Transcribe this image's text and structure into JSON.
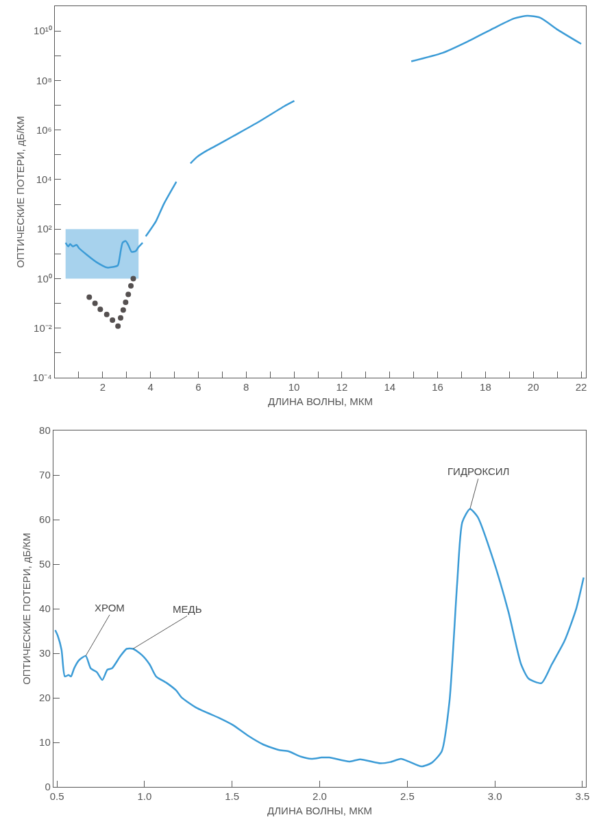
{
  "chart_data": [
    {
      "type": "line",
      "xlabel": "ДЛИНА ВОЛНЫ, МКМ",
      "ylabel": "ОПТИЧЕСКИЕ ПОТЕРИ, дБ/КМ",
      "log": "y",
      "grid": false,
      "xlim": [
        0,
        22.2
      ],
      "ylim": [
        0.0001,
        100000000000.0
      ],
      "xticks": [
        {
          "value": 1,
          "label": null
        },
        2,
        {
          "value": 3,
          "label": null
        },
        4,
        {
          "value": 5,
          "label": null
        },
        6,
        {
          "value": 7,
          "label": null
        },
        8,
        {
          "value": 9,
          "label": null
        },
        10,
        {
          "value": 11,
          "label": null
        },
        12,
        {
          "value": 13,
          "label": null
        },
        14,
        {
          "value": 15,
          "label": null
        },
        16,
        {
          "value": 17,
          "label": null
        },
        18,
        {
          "value": 19,
          "label": null
        },
        20,
        {
          "value": 21,
          "label": null
        },
        22
      ],
      "yticks": [
        {
          "value": 0.0001,
          "label": "10⁻⁴"
        },
        {
          "value": 0.001,
          "label": null
        },
        {
          "value": 0.01,
          "label": "10⁻²"
        },
        {
          "value": 0.1,
          "label": null
        },
        {
          "value": 1,
          "label": "10⁰"
        },
        {
          "value": 10,
          "label": null
        },
        {
          "value": 100,
          "label": "10²"
        },
        {
          "value": 1000.0,
          "label": null
        },
        {
          "value": 10000.0,
          "label": "10⁴"
        },
        {
          "value": 100000.0,
          "label": null
        },
        {
          "value": 1000000.0,
          "label": "10⁶"
        },
        {
          "value": 10000000.0,
          "label": null
        },
        {
          "value": 100000000.0,
          "label": "10⁸"
        },
        {
          "value": 1000000000.0,
          "label": null
        },
        {
          "value": 10000000000.0,
          "label": "10¹⁰"
        }
      ],
      "series": [
        {
          "type": "line",
          "color": "#3b9bd6",
          "x": [
            0.45,
            0.56,
            0.64,
            0.75,
            0.91,
            1.01,
            1.33,
            1.76,
            2.19,
            2.63,
            2.71,
            2.83,
            2.96,
            3.07,
            3.21,
            3.38,
            3.5
          ],
          "values": [
            28,
            20,
            25,
            20,
            23,
            17,
            9.3,
            4.5,
            2.8,
            3.4,
            7.2,
            28,
            33,
            23,
            12,
            13,
            19
          ],
          "lower": [
            1,
            1,
            1,
            1,
            1,
            1,
            1,
            1,
            1,
            1,
            1,
            1,
            1,
            1,
            1,
            1,
            1
          ],
          "upper": [
            100,
            100,
            100,
            100,
            100,
            100,
            100,
            100,
            100,
            100,
            100,
            100,
            100,
            100,
            100,
            100,
            100
          ]
        },
        {
          "type": "line",
          "color": "#3b9bd6",
          "x": [
            3.5,
            3.67,
            3.73,
            3.8,
            4.23,
            4.55,
            5.08,
            5.3,
            5.67,
            5.94,
            6.37,
            6.8,
            7.45,
            8.51,
            9.59,
            10.01,
            12,
            14.9,
            16.21,
            17.27,
            18.35,
            19.2,
            19.75,
            20.29,
            21.03,
            22.0
          ],
          "values": [
            19,
            28,
            null,
            51,
            210,
            1000,
            8100,
            null,
            45000,
            81000,
            150000,
            250000,
            560000,
            2100000,
            9100000,
            15000000,
            null,
            590000000,
            1300000000,
            3800000000,
            13000000000,
            32000000000,
            41000000000,
            34000000000,
            11000000000,
            3000000000
          ]
        },
        {
          "type": "scatter",
          "marker": "circle",
          "color": "#555050",
          "x": [
            1.44,
            1.68,
            1.9,
            2.17,
            2.41,
            2.64,
            2.75,
            2.86,
            2.96,
            3.07,
            3.18,
            3.28
          ],
          "values": [
            0.18,
            0.1,
            0.058,
            0.036,
            0.021,
            0.012,
            0.026,
            0.054,
            0.11,
            0.23,
            0.51,
            1.0
          ]
        }
      ]
    },
    {
      "type": "line",
      "xlabel": "ДЛИНА ВОЛНЫ, МКМ",
      "ylabel": "ОПТИЧЕСКИЕ ПОТЕРИ, дБ/КМ",
      "grid": false,
      "xlim": [
        0.48,
        3.52
      ],
      "ylim": [
        0,
        80
      ],
      "xticks": [
        {
          "value": 0.5,
          "label": "0.5"
        },
        {
          "value": 1,
          "label": "1.0"
        },
        {
          "value": 1.5,
          "label": "1.5"
        },
        {
          "value": 2,
          "label": "2.0"
        },
        {
          "value": 2.5,
          "label": "2.5"
        },
        {
          "value": 3,
          "label": "3.0"
        },
        {
          "value": 3.5,
          "label": "3.5"
        }
      ],
      "yticks": [
        0,
        10,
        20,
        30,
        40,
        50,
        60,
        70,
        80
      ],
      "annotations": [
        {
          "text": "ХРОМ",
          "x": 0.664,
          "y": 29.4
        },
        {
          "text": "МЕДЬ",
          "x": 0.934,
          "y": 31
        },
        {
          "text": "ГИДРОКСИЛ",
          "x": 2.858,
          "y": 62.4
        }
      ],
      "series": [
        {
          "type": "line",
          "color": "#3b9bd6",
          "x": [
            0.49,
            0.504,
            0.526,
            0.545,
            0.566,
            0.58,
            0.598,
            0.625,
            0.664,
            0.693,
            0.727,
            0.759,
            0.788,
            0.814,
            0.861,
            0.898,
            0.934,
            0.985,
            1.029,
            1.066,
            1.124,
            1.182,
            1.211,
            1.299,
            1.43,
            1.504,
            1.591,
            1.679,
            1.766,
            1.822,
            1.892,
            1.953,
            2.011,
            2.055,
            2.172,
            2.23,
            2.347,
            2.405,
            2.464,
            2.508,
            2.581,
            2.639,
            2.697,
            2.741,
            2.785,
            2.814,
            2.858,
            2.902,
            2.989,
            3.077,
            3.15,
            3.193,
            3.266,
            3.325,
            3.398,
            3.464,
            3.507
          ],
          "values": [
            35.2,
            34,
            30.8,
            24.8,
            25.1,
            24.8,
            26.6,
            28.4,
            29.4,
            26.6,
            25.8,
            24,
            26.3,
            26.6,
            29.3,
            31,
            31,
            29.6,
            27.5,
            24.8,
            23.4,
            21.6,
            20.1,
            17.7,
            15.4,
            13.9,
            11.5,
            9.5,
            8.3,
            8,
            6.8,
            6.3,
            6.6,
            6.6,
            5.7,
            6.2,
            5.3,
            5.6,
            6.3,
            5.7,
            4.6,
            5.4,
            8,
            19.2,
            45.8,
            59.4,
            62.4,
            60.6,
            51.2,
            39.4,
            27.5,
            24.3,
            23.3,
            27.5,
            32.8,
            39.9,
            47
          ]
        }
      ]
    }
  ]
}
